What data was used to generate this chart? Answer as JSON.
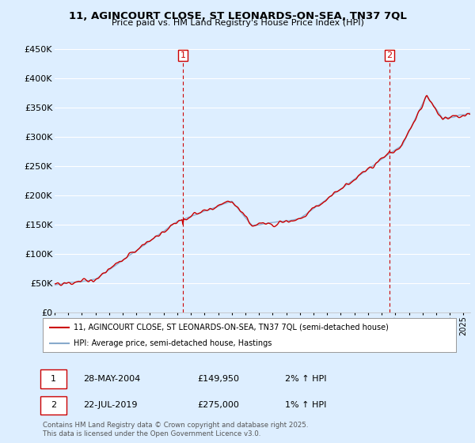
{
  "title_line1": "11, AGINCOURT CLOSE, ST LEONARDS-ON-SEA, TN37 7QL",
  "title_line2": "Price paid vs. HM Land Registry's House Price Index (HPI)",
  "ylim": [
    0,
    450000
  ],
  "yticks": [
    0,
    50000,
    100000,
    150000,
    200000,
    250000,
    300000,
    350000,
    400000,
    450000
  ],
  "ytick_labels": [
    "£0",
    "£50K",
    "£100K",
    "£150K",
    "£200K",
    "£250K",
    "£300K",
    "£350K",
    "£400K",
    "£450K"
  ],
  "background_color": "#ddeeff",
  "plot_bg_color": "#ddeeff",
  "grid_color": "#ffffff",
  "legend_label_red": "11, AGINCOURT CLOSE, ST LEONARDS-ON-SEA, TN37 7QL (semi-detached house)",
  "legend_label_blue": "HPI: Average price, semi-detached house, Hastings",
  "annotation1_date": "28-MAY-2004",
  "annotation1_price": "£149,950",
  "annotation1_hpi": "2% ↑ HPI",
  "annotation2_date": "22-JUL-2019",
  "annotation2_price": "£275,000",
  "annotation2_hpi": "1% ↑ HPI",
  "footer": "Contains HM Land Registry data © Crown copyright and database right 2025.\nThis data is licensed under the Open Government Licence v3.0.",
  "red_color": "#cc0000",
  "blue_color": "#88aacc",
  "xlim_start": 1995.0,
  "xlim_end": 2025.5,
  "x1_year": 2004.42,
  "x2_year": 2019.58
}
